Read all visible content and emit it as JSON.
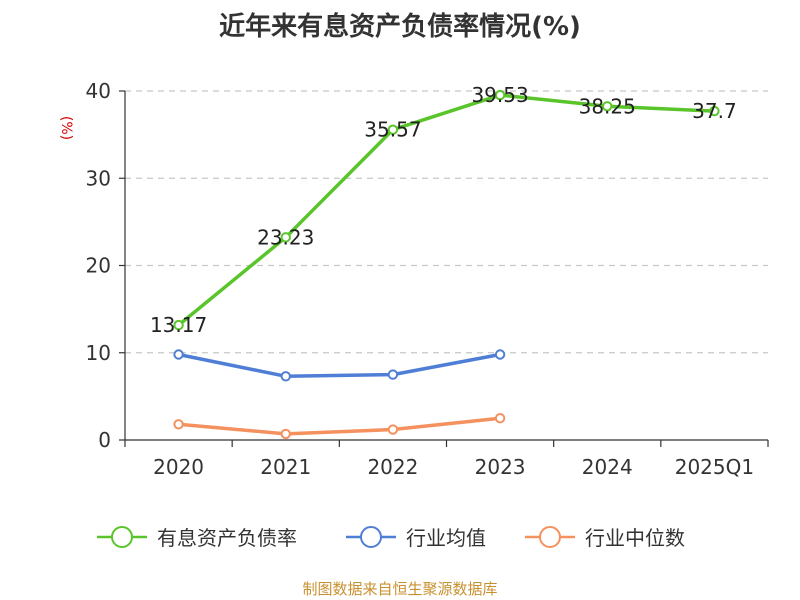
{
  "title": "近年来有息资产负债率情况(%)",
  "source": "制图数据来自恒生聚源数据库",
  "chart_data": {
    "type": "line",
    "title": "近年来有息资产负债率情况(%)",
    "ylabel": "(%)",
    "xlabel": "",
    "categories": [
      "2020",
      "2021",
      "2022",
      "2023",
      "2024",
      "2025Q1"
    ],
    "ylim": [
      0,
      40
    ],
    "yticks": [
      0,
      10,
      20,
      30,
      40
    ],
    "grid": true,
    "legend_position": "bottom",
    "series": [
      {
        "name": "有息资产负债率",
        "color": "#5ac52b",
        "values": [
          13.17,
          23.23,
          35.57,
          39.53,
          38.25,
          37.7
        ],
        "labels": [
          "13.17",
          "23.23",
          "35.57",
          "39.53",
          "38.25",
          "37.7"
        ],
        "show_labels": true
      },
      {
        "name": "行业均值",
        "color": "#4f7ed6",
        "values": [
          9.8,
          7.3,
          7.5,
          9.8,
          null,
          null
        ],
        "show_labels": false
      },
      {
        "name": "行业中位数",
        "color": "#f4915e",
        "values": [
          1.8,
          0.7,
          1.2,
          2.5,
          null,
          null
        ],
        "show_labels": false
      }
    ]
  }
}
